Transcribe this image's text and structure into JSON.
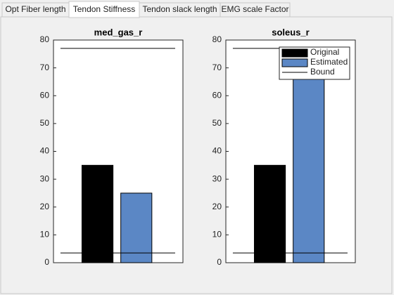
{
  "tabs": [
    "Opt Fiber length",
    "Tendon Stiffness",
    "Tendon slack length",
    "EMG scale Factor"
  ],
  "selected_tab": 1,
  "chart_data": [
    {
      "type": "bar",
      "title": "med_gas_r",
      "series": [
        {
          "name": "Original",
          "color": "#000000",
          "values": [
            35
          ]
        },
        {
          "name": "Estimated",
          "color": "#5b87c5",
          "values": [
            25
          ]
        }
      ],
      "bound": {
        "name": "Bound",
        "color": "#000000",
        "values": [
          3.5,
          77
        ]
      },
      "ylim": [
        0,
        80
      ],
      "yticks": [
        0,
        10,
        20,
        30,
        40,
        50,
        60,
        70,
        80
      ],
      "legend": false
    },
    {
      "type": "bar",
      "title": "soleus_r",
      "series": [
        {
          "name": "Original",
          "color": "#000000",
          "values": [
            35
          ]
        },
        {
          "name": "Estimated",
          "color": "#5b87c5",
          "values": [
            72
          ]
        }
      ],
      "bound": {
        "name": "Bound",
        "color": "#000000",
        "values": [
          3.5,
          77
        ]
      },
      "ylim": [
        0,
        80
      ],
      "yticks": [
        0,
        10,
        20,
        30,
        40,
        50,
        60,
        70,
        80
      ],
      "legend": true,
      "legend_position": "northeast"
    }
  ]
}
